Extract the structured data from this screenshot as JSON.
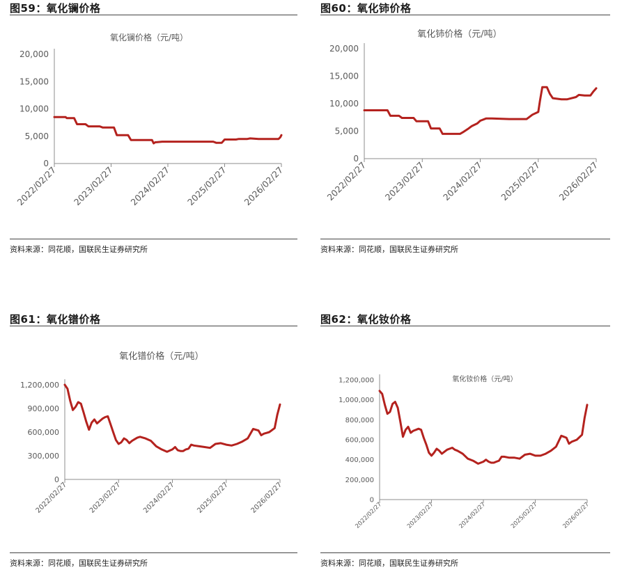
{
  "panels": [
    {
      "fig_title": "图59：氧化镧价格",
      "source": "资料来源：同花顺，国联民生证券研究所"
    },
    {
      "fig_title": "图60：氧化铈价格",
      "source": "资料来源：同花顺，国联民生证券研究所"
    },
    {
      "fig_title": "图61：氧化镨价格",
      "source": "资料来源：同花顺，国联民生证券研究所"
    },
    {
      "fig_title": "图62：氧化钕价格",
      "source": "资料来源：同花顺，国联民生证券研究所"
    }
  ],
  "colors": {
    "line": "#b4221e",
    "axis": "#8c8c8c",
    "rule": "#444444"
  },
  "chart_data": [
    {
      "type": "line",
      "title": "氧化镧价格（元/吨）",
      "ylim": [
        0,
        20000
      ],
      "yticks": [
        "0",
        "5,000",
        "10,000",
        "15,000",
        "20,000"
      ],
      "ytick_values": [
        0,
        5000,
        10000,
        15000,
        20000
      ],
      "xticks": [
        "2022/02/27",
        "2023/02/27",
        "2024/02/27",
        "2025/02/27",
        "2026/02/27"
      ],
      "grid": false,
      "series": [
        {
          "x": [
            0,
            0.2,
            0.22,
            0.35,
            0.4,
            0.55,
            0.6,
            0.8,
            0.85,
            1.05,
            1.1,
            1.3,
            1.35,
            1.45,
            1.5,
            1.72,
            1.75,
            1.78,
            1.8,
            1.9,
            2.0,
            2.2,
            2.4,
            2.6,
            2.8,
            2.85,
            2.95,
            3.0,
            3.2,
            3.25,
            3.4,
            3.45,
            3.6,
            3.8,
            3.95,
            3.98,
            4.0
          ],
          "y": [
            8500,
            8500,
            8300,
            8300,
            7200,
            7200,
            6800,
            6800,
            6600,
            6600,
            5200,
            5200,
            4300,
            4300,
            4300,
            4300,
            3700,
            3900,
            3900,
            4000,
            4000,
            4000,
            4000,
            4000,
            4000,
            3800,
            3800,
            4400,
            4400,
            4500,
            4500,
            4600,
            4500,
            4500,
            4500,
            4800,
            5200
          ]
        }
      ]
    },
    {
      "type": "line",
      "title": "氧化铈价格（元/吨）",
      "ylim": [
        0,
        20000
      ],
      "yticks": [
        "0",
        "5,000",
        "10,000",
        "15,000",
        "20,000"
      ],
      "ytick_values": [
        0,
        5000,
        10000,
        15000,
        20000
      ],
      "xticks": [
        "2022/02/27",
        "2023/02/27",
        "2024/02/27",
        "2025/02/27",
        "2026/02/27"
      ],
      "grid": false,
      "series": [
        {
          "x": [
            0,
            0.4,
            0.45,
            0.6,
            0.65,
            0.85,
            0.9,
            1.1,
            1.15,
            1.3,
            1.35,
            1.5,
            1.65,
            1.7,
            1.8,
            1.85,
            1.95,
            2.0,
            2.1,
            2.2,
            2.5,
            2.8,
            2.9,
            3.0,
            3.03,
            3.07,
            3.15,
            3.2,
            3.25,
            3.4,
            3.5,
            3.65,
            3.7,
            3.8,
            3.9,
            3.95,
            4.0
          ],
          "y": [
            8800,
            8800,
            7800,
            7800,
            7400,
            7400,
            6800,
            6800,
            5500,
            5500,
            4500,
            4500,
            4500,
            4800,
            5500,
            5900,
            6400,
            6900,
            7300,
            7300,
            7200,
            7200,
            8000,
            8500,
            10500,
            13000,
            13000,
            11800,
            11000,
            10800,
            10800,
            11200,
            11600,
            11500,
            11500,
            12200,
            12800
          ]
        }
      ]
    },
    {
      "type": "line",
      "title": "氧化镨价格（元/吨）",
      "ylim": [
        0,
        1200000
      ],
      "yticks": [
        "0",
        "300,000",
        "600,000",
        "900,000",
        "1,200,000"
      ],
      "ytick_values": [
        0,
        300000,
        600000,
        900000,
        1200000
      ],
      "xticks": [
        "2022/02/27",
        "2023/02/27",
        "2024/02/27",
        "2025/02/27",
        "2026/02/27"
      ],
      "grid": false,
      "series": [
        {
          "x": [
            0,
            0.05,
            0.1,
            0.15,
            0.2,
            0.25,
            0.3,
            0.35,
            0.4,
            0.45,
            0.5,
            0.55,
            0.6,
            0.65,
            0.7,
            0.75,
            0.8,
            0.85,
            0.9,
            0.95,
            1.0,
            1.05,
            1.1,
            1.15,
            1.2,
            1.25,
            1.3,
            1.35,
            1.4,
            1.45,
            1.5,
            1.6,
            1.7,
            1.8,
            1.9,
            2.0,
            2.05,
            2.1,
            2.15,
            2.2,
            2.25,
            2.3,
            2.35,
            2.4,
            2.5,
            2.6,
            2.7,
            2.8,
            2.9,
            3.0,
            3.1,
            3.2,
            3.3,
            3.4,
            3.5,
            3.55,
            3.6,
            3.65,
            3.7,
            3.8,
            3.9,
            3.95,
            4.0
          ],
          "y": [
            1200000,
            1150000,
            1000000,
            880000,
            920000,
            980000,
            960000,
            850000,
            730000,
            630000,
            720000,
            760000,
            710000,
            740000,
            770000,
            790000,
            800000,
            700000,
            600000,
            500000,
            450000,
            470000,
            520000,
            500000,
            460000,
            490000,
            510000,
            530000,
            540000,
            530000,
            520000,
            490000,
            420000,
            380000,
            350000,
            380000,
            410000,
            370000,
            360000,
            360000,
            380000,
            390000,
            440000,
            430000,
            420000,
            410000,
            400000,
            450000,
            460000,
            440000,
            430000,
            450000,
            480000,
            520000,
            640000,
            630000,
            620000,
            560000,
            580000,
            600000,
            650000,
            820000,
            950000
          ]
        }
      ]
    },
    {
      "type": "line",
      "title": "氧化钕价格（元/吨）",
      "ylim": [
        0,
        1200000
      ],
      "yticks": [
        "0",
        "200,000",
        "400,000",
        "600,000",
        "800,000",
        "1,000,000",
        "1,200,000"
      ],
      "ytick_values": [
        0,
        200000,
        400000,
        600000,
        800000,
        1000000,
        1200000
      ],
      "xticks": [
        "2022/02/27",
        "2023/02/27",
        "2024/02/27",
        "2025/02/27",
        "2026/02/27"
      ],
      "grid": false,
      "series": [
        {
          "x": [
            0,
            0.05,
            0.1,
            0.15,
            0.2,
            0.25,
            0.3,
            0.35,
            0.4,
            0.45,
            0.5,
            0.55,
            0.6,
            0.65,
            0.7,
            0.75,
            0.8,
            0.85,
            0.9,
            0.95,
            1.0,
            1.05,
            1.1,
            1.15,
            1.2,
            1.25,
            1.3,
            1.35,
            1.4,
            1.45,
            1.5,
            1.6,
            1.7,
            1.8,
            1.9,
            2.0,
            2.05,
            2.1,
            2.15,
            2.2,
            2.25,
            2.3,
            2.35,
            2.4,
            2.5,
            2.6,
            2.7,
            2.8,
            2.9,
            3.0,
            3.1,
            3.2,
            3.3,
            3.4,
            3.5,
            3.55,
            3.6,
            3.65,
            3.7,
            3.8,
            3.9,
            3.95,
            4.0
          ],
          "y": [
            1090000,
            1060000,
            950000,
            860000,
            880000,
            960000,
            980000,
            920000,
            780000,
            630000,
            700000,
            730000,
            670000,
            690000,
            700000,
            710000,
            700000,
            620000,
            550000,
            470000,
            440000,
            470000,
            510000,
            490000,
            460000,
            480000,
            500000,
            510000,
            520000,
            500000,
            490000,
            460000,
            410000,
            390000,
            360000,
            380000,
            400000,
            380000,
            370000,
            370000,
            380000,
            390000,
            430000,
            430000,
            420000,
            420000,
            410000,
            450000,
            460000,
            440000,
            440000,
            460000,
            490000,
            530000,
            640000,
            630000,
            620000,
            560000,
            580000,
            600000,
            650000,
            820000,
            950000
          ]
        }
      ]
    }
  ]
}
